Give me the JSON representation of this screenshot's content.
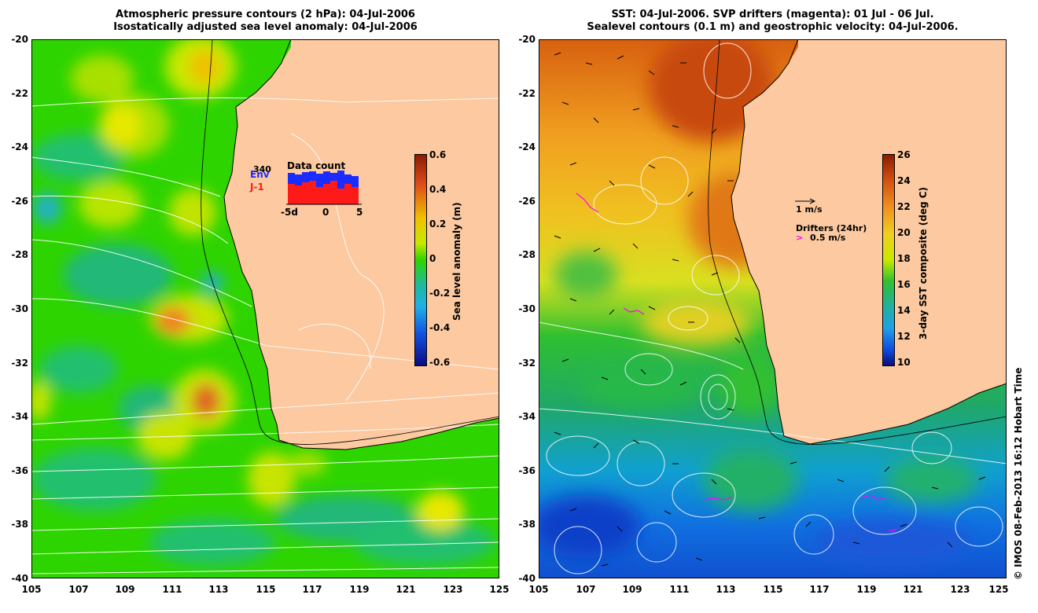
{
  "left_panel": {
    "title_line1": "Atmospheric pressure contours (2 hPa): 04-Jul-2006",
    "title_line2": "Isostatically adjusted sea level anomaly: 04-Jul-2006",
    "colorbar": {
      "label": "Sea level anomaly (m)",
      "ticks": [
        "0.6",
        "0.4",
        "0.2",
        "0",
        "-0.2",
        "-0.4",
        "-0.6"
      ]
    },
    "inset": {
      "title": "Data count",
      "count": "340",
      "series_a": "Env",
      "series_b": "J-1",
      "x_ticks": [
        "-5d",
        "0",
        "5"
      ]
    }
  },
  "right_panel": {
    "title_line1": "SST: 04-Jul-2006. SVP drifters (magenta): 01 Jul - 06 Jul.",
    "title_line2": "Sealevel contours (0.1 m) and geostrophic velocity: 04-Jul-2006.",
    "colorbar": {
      "label": "3-day SST composite (deg C)",
      "ticks": [
        "26",
        "24",
        "22",
        "20",
        "18",
        "16",
        "14",
        "12",
        "10"
      ]
    },
    "legend": {
      "velocity_scale": "1 m/s",
      "drifters_label": "Drifters (24hr)",
      "drifters_scale": "0.5 m/s"
    }
  },
  "axes": {
    "y_ticks": [
      "-20",
      "-22",
      "-24",
      "-26",
      "-28",
      "-30",
      "-32",
      "-34",
      "-36",
      "-38",
      "-40"
    ],
    "x_ticks": [
      "105",
      "107",
      "109",
      "111",
      "113",
      "115",
      "117",
      "119",
      "121",
      "123",
      "125"
    ]
  },
  "credit": "© IMOS 08-Feb-2013 16:12 Hobart Time",
  "colors": {
    "land": "#fcc9a0",
    "sla_green": "#2ed400",
    "sst_orange": "#e07b12",
    "drifter_magenta": "#ff00ff"
  }
}
